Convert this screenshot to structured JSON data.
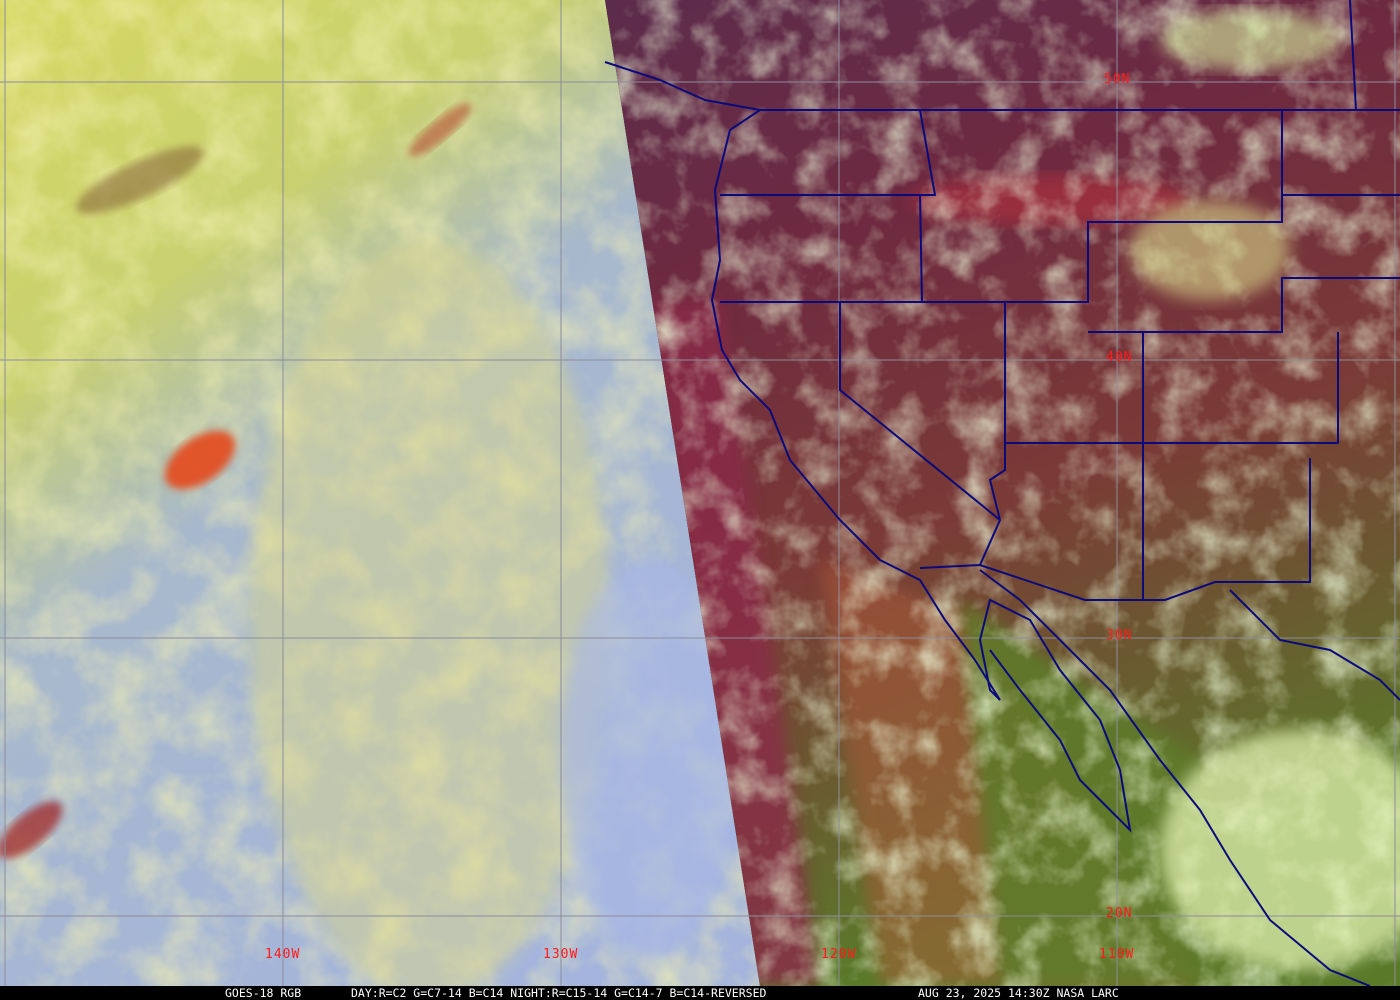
{
  "image": {
    "type": "satellite-rgb-composite",
    "colors": {
      "ocean_day_blue": "#9fb3d6",
      "cloud_yellow": "#d9d86a",
      "night_red": "#8a2a4a",
      "night_purple": "#5a2c4c",
      "land_green": "#5f7a2a",
      "low_cloud_light_green": "#d9f5b0",
      "deep_cloud_orange": "#e0552a",
      "boundaries": "#0a0a7a",
      "grid": "#8c8c9c",
      "grid_label": "#ff1a1a"
    }
  },
  "grid": {
    "latitude_labels": [
      "50N",
      "40N",
      "30N",
      "20N"
    ],
    "longitude_labels": [
      "140W",
      "130W",
      "120W",
      "110W"
    ]
  },
  "caption": {
    "satellite": "GOES-18 RGB",
    "product": "DAY:R=C2 G=C7-14 B=C14 NIGHT:R=C15-14 G=C14-7 B=C14-REVERSED",
    "timestamp": "AUG 23, 2025 14:30Z NASA LARC"
  }
}
